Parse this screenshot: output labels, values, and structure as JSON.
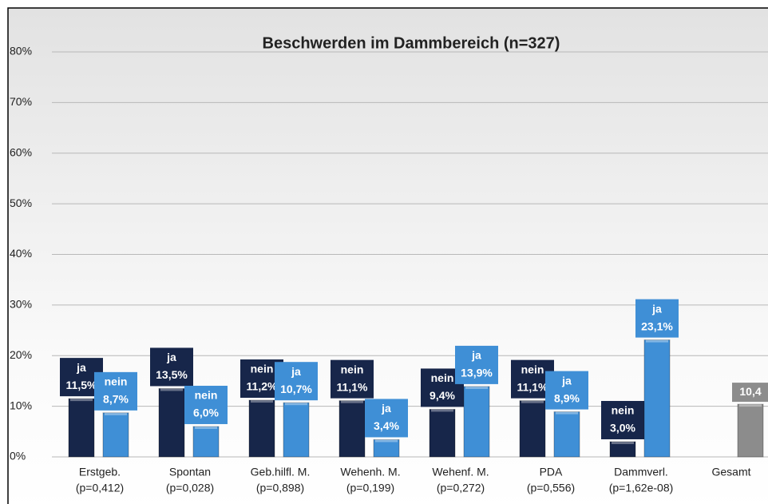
{
  "chart_data": {
    "type": "bar",
    "title": "Beschwerden im Dammbereich (n=327)",
    "categories": [
      "Erstgeb.",
      "Spontan",
      "Geb.hilfl. M.",
      "Wehenh. M.",
      "Wehenf. M.",
      "PDA",
      "Dammverl.",
      "Gesamt"
    ],
    "category_notes": [
      "(p=0,412)",
      "(p=0,028)",
      "(p=0,898)",
      "(p=0,199)",
      "(p=0,272)",
      "(p=0,556)",
      "(p=1,62e-08)",
      null
    ],
    "series": [
      {
        "color": "#17264a",
        "values": [
          11.5,
          13.5,
          11.2,
          11.1,
          9.4,
          11.1,
          3.0,
          null
        ],
        "bar_labels": [
          "ja",
          "ja",
          "nein",
          "nein",
          "nein",
          "nein",
          "nein",
          null
        ],
        "value_labels": [
          "11,5%",
          "13,5%",
          "11,2%",
          "11,1%",
          "9,4%",
          "11,1%",
          "3,0%",
          null
        ]
      },
      {
        "color": "#3f8fd6",
        "values": [
          8.7,
          6.0,
          10.7,
          3.4,
          13.9,
          8.9,
          23.1,
          null
        ],
        "bar_labels": [
          "nein",
          "nein",
          "ja",
          "ja",
          "ja",
          "ja",
          "ja",
          null
        ],
        "value_labels": [
          "8,7%",
          "6,0%",
          "10,7%",
          "3,4%",
          "13,9%",
          "8,9%",
          "23,1%",
          null
        ]
      },
      {
        "color": "#8c8c8c",
        "values": [
          null,
          null,
          null,
          null,
          null,
          null,
          null,
          10.4
        ],
        "bar_labels": [
          null,
          null,
          null,
          null,
          null,
          null,
          null,
          null
        ],
        "value_labels": [
          null,
          null,
          null,
          null,
          null,
          null,
          null,
          "10,4"
        ]
      }
    ],
    "ylim": [
      0,
      80
    ],
    "yticks": [
      {
        "value": 0,
        "label": "0%"
      },
      {
        "value": 10,
        "label": "10%"
      },
      {
        "value": 20,
        "label": "20%"
      },
      {
        "value": 30,
        "label": "30%"
      },
      {
        "value": 40,
        "label": "40%"
      },
      {
        "value": 50,
        "label": "50%"
      },
      {
        "value": 60,
        "label": "60%"
      },
      {
        "value": 70,
        "label": "70%"
      },
      {
        "value": 80,
        "label": "80%"
      }
    ],
    "grid": true
  }
}
